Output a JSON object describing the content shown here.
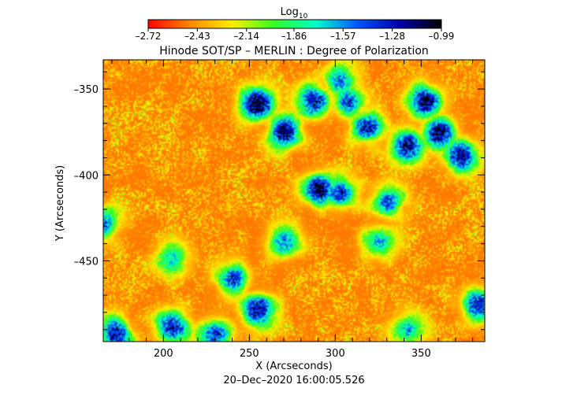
{
  "chart_data": {
    "type": "heatmap",
    "title": "Hinode SOT/SP – MERLIN : Degree of Polarization",
    "colorbar": {
      "label": "Log",
      "label_subscript": "10",
      "ticks": [
        -2.72,
        -2.43,
        -2.14,
        -1.86,
        -1.57,
        -1.28,
        -0.99
      ],
      "tick_labels": [
        "–2.72",
        "–2.43",
        "–2.14",
        "–1.86",
        "–1.57",
        "–1.28",
        "–0.99"
      ],
      "range": [
        -2.72,
        -0.99
      ],
      "colormap": [
        "#ff0000",
        "#ff8800",
        "#ffee00",
        "#33ff22",
        "#00ffcc",
        "#0055ff",
        "#0000aa",
        "#000000"
      ]
    },
    "xlabel": "X (Arcseconds)",
    "ylabel": "Y (Arcseconds)",
    "xlim": [
      165,
      387
    ],
    "ylim": [
      -497,
      -333
    ],
    "x_ticks": [
      200,
      250,
      300,
      350
    ],
    "y_ticks": [
      -350,
      -400,
      -450
    ],
    "x_tick_labels": [
      "200",
      "250",
      "300",
      "350"
    ],
    "y_tick_labels": [
      "–350",
      "–400",
      "–450"
    ],
    "footer": "20–Dec–2020 16:00:05.526",
    "background_level": -2.5,
    "strong_regions": [
      {
        "x": 254,
        "y": -358,
        "peak": -1.0
      },
      {
        "x": 270,
        "y": -374,
        "peak": -1.05
      },
      {
        "x": 287,
        "y": -356,
        "peak": -1.2
      },
      {
        "x": 307,
        "y": -357,
        "peak": -1.35
      },
      {
        "x": 318,
        "y": -372,
        "peak": -1.25
      },
      {
        "x": 352,
        "y": -357,
        "peak": -1.05
      },
      {
        "x": 360,
        "y": -375,
        "peak": -1.1
      },
      {
        "x": 342,
        "y": -382,
        "peak": -1.15
      },
      {
        "x": 373,
        "y": -388,
        "peak": -1.2
      },
      {
        "x": 290,
        "y": -408,
        "peak": -1.05
      },
      {
        "x": 303,
        "y": -410,
        "peak": -1.3
      },
      {
        "x": 270,
        "y": -438,
        "peak": -1.5
      },
      {
        "x": 330,
        "y": -415,
        "peak": -1.4
      },
      {
        "x": 240,
        "y": -460,
        "peak": -1.3
      },
      {
        "x": 255,
        "y": -478,
        "peak": -1.15
      },
      {
        "x": 230,
        "y": -492,
        "peak": -1.35
      },
      {
        "x": 205,
        "y": -488,
        "peak": -1.3
      },
      {
        "x": 172,
        "y": -492,
        "peak": -1.2
      },
      {
        "x": 205,
        "y": -448,
        "peak": -1.7
      },
      {
        "x": 383,
        "y": -475,
        "peak": -1.3
      },
      {
        "x": 342,
        "y": -490,
        "peak": -1.6
      },
      {
        "x": 325,
        "y": -438,
        "peak": -1.6
      },
      {
        "x": 165,
        "y": -428,
        "peak": -1.5
      },
      {
        "x": 303,
        "y": -345,
        "peak": -1.5
      }
    ]
  }
}
